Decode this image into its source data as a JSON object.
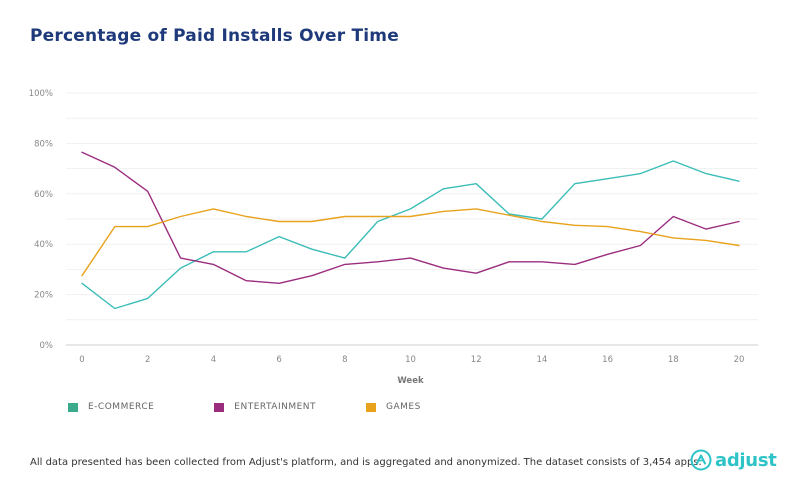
{
  "title": "Percentage of Paid Installs Over Time",
  "footer": "All data presented has been collected from Adjust's platform, and is aggregated and anonymized. The dataset consists of 3,454 apps.",
  "logo": {
    "text": "adjust",
    "icon": "adjust-logo-icon",
    "color": "#2ec4c7"
  },
  "chart_data": {
    "type": "line",
    "title": "Percentage of Paid Installs Over Time",
    "xlabel": "Week",
    "ylabel": "",
    "x": [
      0,
      1,
      2,
      3,
      4,
      5,
      6,
      7,
      8,
      9,
      10,
      11,
      12,
      13,
      14,
      15,
      16,
      17,
      18,
      19,
      20
    ],
    "xticks": [
      0,
      2,
      4,
      6,
      8,
      10,
      12,
      14,
      16,
      18,
      20
    ],
    "xlim": [
      0,
      20
    ],
    "ylim": [
      0,
      100
    ],
    "yticks": [
      0,
      20,
      40,
      60,
      80,
      100
    ],
    "ytick_labels": [
      "0%",
      "20%",
      "40%",
      "60%",
      "80%",
      "100%"
    ],
    "grid": true,
    "legend_position": "bottom-left",
    "series": [
      {
        "name": "E-COMMERCE",
        "color": "#3bbdb8",
        "swatch_color": "#3aaa8c",
        "values": [
          24.5,
          14.5,
          18.5,
          30.5,
          37,
          37,
          43,
          38,
          34.5,
          49,
          54,
          62,
          64,
          52,
          50,
          64,
          66,
          68,
          73,
          68,
          65
        ]
      },
      {
        "name": "ENTERTAINMENT",
        "color": "#9b2d7f",
        "swatch_color": "#9b2d7f",
        "values": [
          76.5,
          70.5,
          61,
          34.5,
          32,
          25.5,
          24.5,
          27.5,
          32,
          33,
          34.5,
          30.5,
          28.5,
          33,
          33,
          32,
          36,
          39.5,
          51,
          46,
          49
        ]
      },
      {
        "name": "GAMES",
        "color": "#e8a21c",
        "swatch_color": "#e8a21c",
        "values": [
          27.5,
          47,
          47,
          51,
          54,
          51,
          49,
          49,
          51,
          51,
          51,
          53,
          54,
          51.5,
          49,
          47.5,
          47,
          45,
          42.5,
          41.5,
          39.5
        ]
      }
    ]
  }
}
